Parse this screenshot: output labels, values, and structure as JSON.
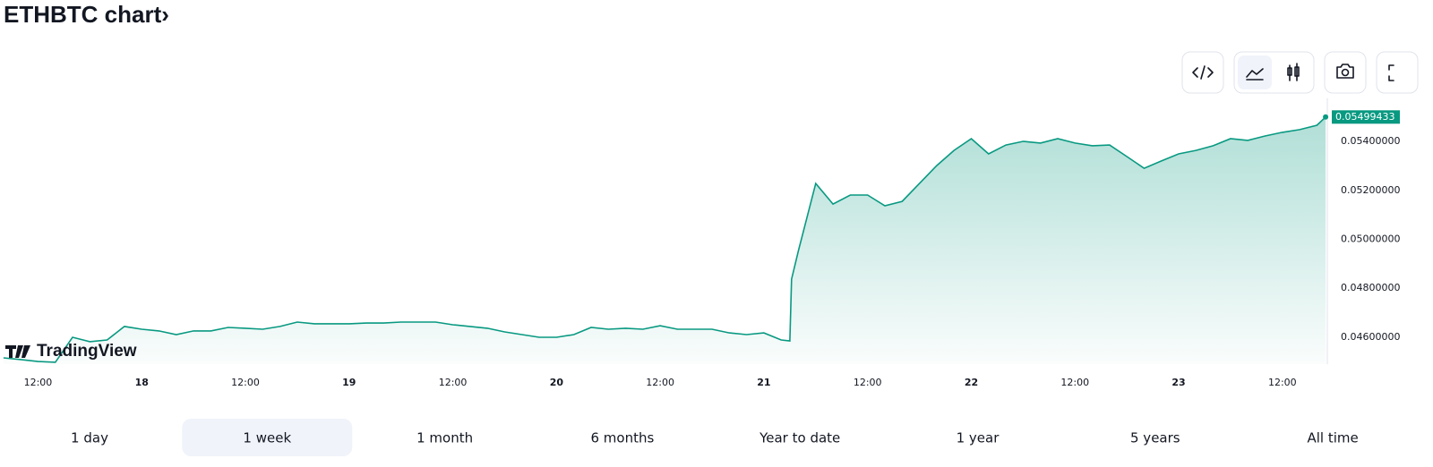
{
  "title": "ETHBTC chart›",
  "watermark": "TradingView",
  "range_buttons": {
    "items": [
      "1 day",
      "1 week",
      "1 month",
      "6 months",
      "Year to date",
      "1 year",
      "5 years",
      "All time"
    ],
    "selected": 1
  },
  "chart_data": {
    "type": "area",
    "x": [
      8,
      10,
      12,
      14,
      16,
      18,
      20,
      22,
      24,
      26,
      28,
      30,
      32,
      34,
      36,
      38,
      40,
      42,
      44,
      46,
      48,
      50,
      52,
      54,
      56,
      58,
      60,
      62,
      64,
      66,
      68,
      70,
      72,
      74,
      76,
      78,
      80,
      82,
      84,
      86,
      88,
      90,
      92,
      94,
      96,
      98,
      99,
      99.2,
      100,
      102,
      104,
      106,
      108,
      110,
      112,
      114,
      116,
      118,
      120,
      122,
      124,
      126,
      128,
      130,
      132,
      134,
      136,
      138,
      140,
      142,
      144,
      146,
      148,
      150,
      152,
      154,
      156,
      158,
      160,
      161
    ],
    "series": [
      {
        "name": "ETHBTC",
        "color": "#089981",
        "values": [
          0.04516,
          0.04509,
          0.04501,
          0.04498,
          0.046,
          0.04582,
          0.04589,
          0.04644,
          0.04633,
          0.04626,
          0.04611,
          0.04626,
          0.04626,
          0.0464,
          0.04637,
          0.04633,
          0.04644,
          0.04662,
          0.04655,
          0.04655,
          0.04655,
          0.04658,
          0.04658,
          0.04662,
          0.04662,
          0.04662,
          0.04651,
          0.04644,
          0.04637,
          0.04622,
          0.04611,
          0.046,
          0.046,
          0.04611,
          0.0464,
          0.04633,
          0.04637,
          0.04633,
          0.04647,
          0.04633,
          0.04633,
          0.04633,
          0.04618,
          0.04611,
          0.04618,
          0.04589,
          0.04585,
          0.04837,
          0.04954,
          0.05228,
          0.05144,
          0.05181,
          0.05181,
          0.05137,
          0.05155,
          0.05228,
          0.05301,
          0.05363,
          0.05411,
          0.05349,
          0.05385,
          0.054,
          0.05393,
          0.05411,
          0.05393,
          0.05382,
          0.05385,
          0.05338,
          0.0529,
          0.0532,
          0.05349,
          0.05363,
          0.05382,
          0.05411,
          0.05404,
          0.05422,
          0.05437,
          0.05448,
          0.05466,
          0.05499433
        ]
      }
    ],
    "xlim": [
      7.6,
      161.2
    ],
    "xticks": [
      {
        "value": 12,
        "label": "12:00"
      },
      {
        "value": 24,
        "label": "18"
      },
      {
        "value": 36,
        "label": "12:00"
      },
      {
        "value": 48,
        "label": "19"
      },
      {
        "value": 60,
        "label": "12:00"
      },
      {
        "value": 72,
        "label": "20"
      },
      {
        "value": 84,
        "label": "12:00"
      },
      {
        "value": 96,
        "label": "21"
      },
      {
        "value": 108,
        "label": "12:00"
      },
      {
        "value": 120,
        "label": "22"
      },
      {
        "value": 132,
        "label": "12:00"
      },
      {
        "value": 144,
        "label": "23"
      },
      {
        "value": 156,
        "label": "12:00"
      }
    ],
    "ylim": [
      0.0449,
      0.0554
    ],
    "yticks": [
      {
        "value": 0.046,
        "label": "0.04600000"
      },
      {
        "value": 0.048,
        "label": "0.04800000"
      },
      {
        "value": 0.05,
        "label": "0.05000000"
      },
      {
        "value": 0.052,
        "label": "0.05200000"
      },
      {
        "value": 0.054,
        "label": "0.05400000"
      }
    ],
    "grid": false
  }
}
